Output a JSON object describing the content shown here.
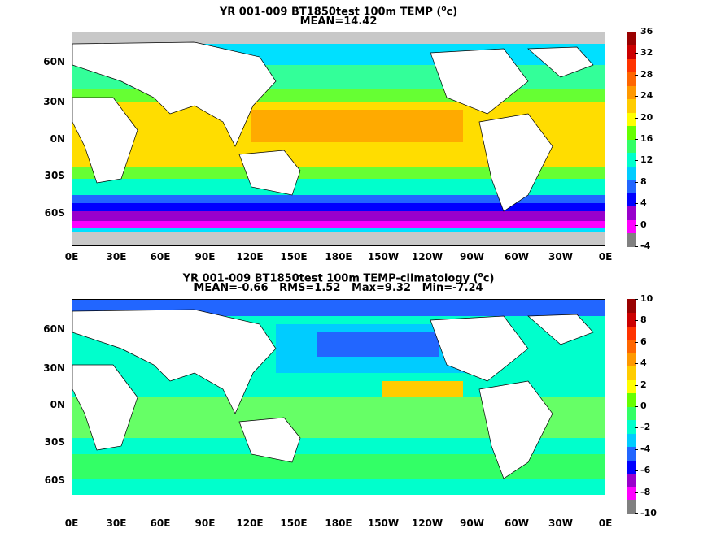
{
  "panels": [
    {
      "title_prefix": "YR 001-009 BT1850test 100m TEMP (",
      "title_unit_sup": "o",
      "title_unit": "c",
      "title_suffix": ")",
      "stats": "MEAN=14.42",
      "colorbar_labels": [
        "36",
        "32",
        "28",
        "24",
        "20",
        "16",
        "12",
        "8",
        "4",
        "0",
        "-4"
      ],
      "colorbar_colors": [
        "#808080",
        "#ff00ff",
        "#9900cc",
        "#0000ff",
        "#2266ff",
        "#00ccff",
        "#00ffcc",
        "#33ff66",
        "#66ff00",
        "#ffff00",
        "#ffcc00",
        "#ff9900",
        "#ff6600",
        "#ff3300",
        "#cc0000",
        "#990000"
      ]
    },
    {
      "title_prefix": "YR 001-009 BT1850test 100m TEMP-climatology (",
      "title_unit_sup": "o",
      "title_unit": "c",
      "title_suffix": ")",
      "stats": "MEAN=-0.66   RMS=1.52   Max=9.32   Min=-7.24",
      "colorbar_labels": [
        "10",
        "8",
        "6",
        "4",
        "2",
        "0",
        "-2",
        "-4",
        "-6",
        "-8",
        "-10"
      ],
      "colorbar_colors": [
        "#808080",
        "#ff00ff",
        "#9900cc",
        "#0000ff",
        "#2266ff",
        "#00ccff",
        "#00ffcc",
        "#33ff66",
        "#66ff00",
        "#ffff00",
        "#ffcc00",
        "#ff9900",
        "#ff6600",
        "#ff3300",
        "#cc0000",
        "#990000"
      ]
    }
  ],
  "y_labels": [
    "60N",
    "30N",
    "0N",
    "30S",
    "60S"
  ],
  "x_labels": [
    "0E",
    "30E",
    "60E",
    "90E",
    "120E",
    "150E",
    "180E",
    "150W",
    "120W",
    "90W",
    "60W",
    "30W",
    "0E"
  ],
  "colors": {
    "land": "#ffffff",
    "ice": "#c8c8c8"
  }
}
